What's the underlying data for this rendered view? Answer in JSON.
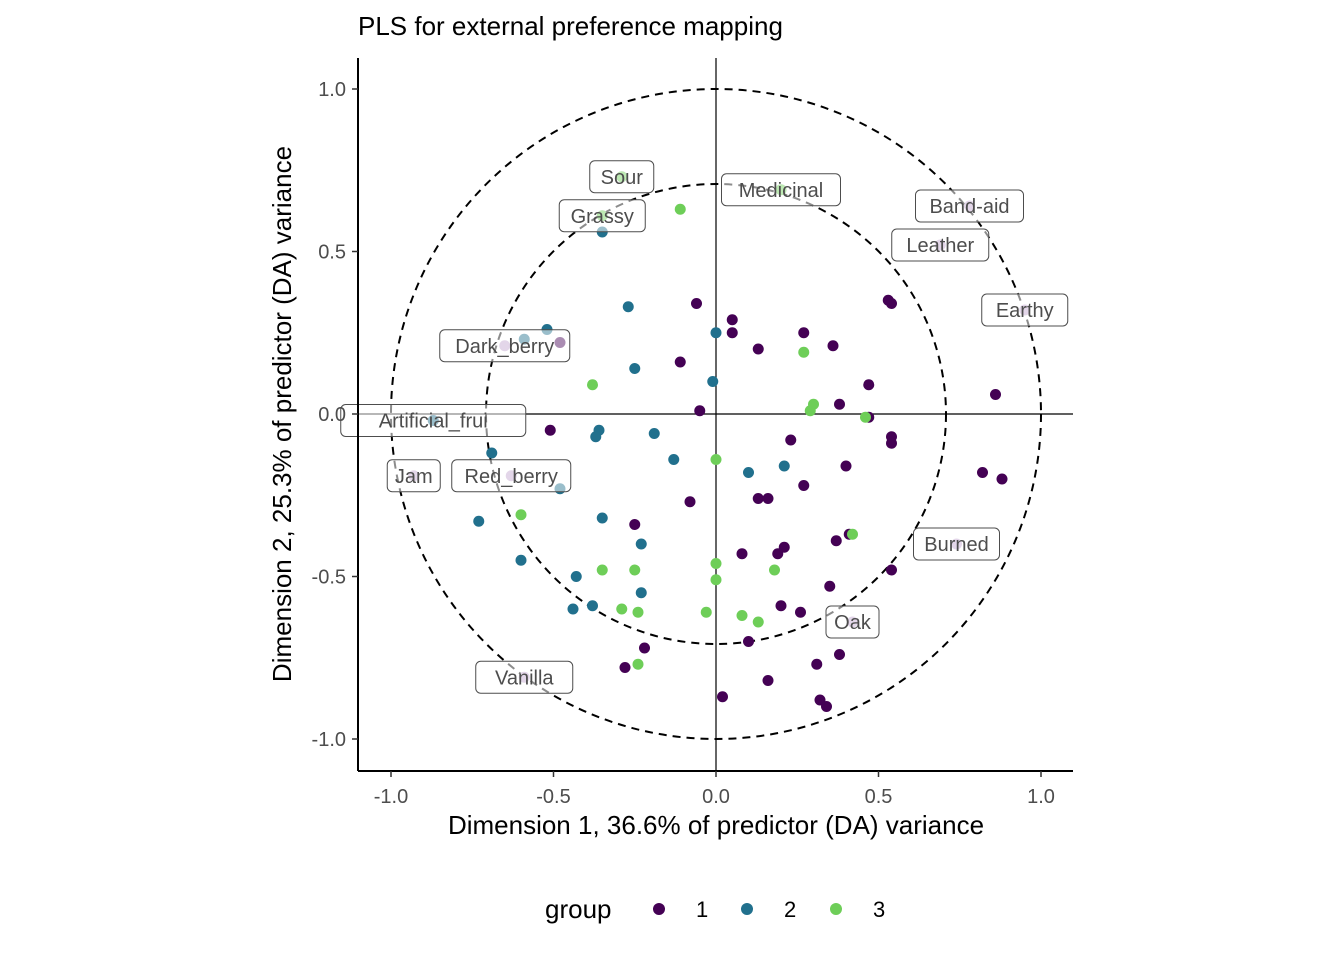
{
  "chart_data": {
    "type": "scatter",
    "title": "PLS for external preference mapping",
    "xlabel": "Dimension 1, 36.6% of predictor (DA) variance",
    "ylabel": "Dimension 2, 25.3% of predictor (DA) variance",
    "xlim": [
      -1.1,
      1.1
    ],
    "ylim": [
      -1.1,
      1.1
    ],
    "x_ticks": [
      "-1.0",
      "-0.5",
      "0.0",
      "0.5",
      "1.0"
    ],
    "y_ticks": [
      "-1.0",
      "-0.5",
      "0.0",
      "0.5",
      "1.0"
    ],
    "grid": false,
    "reference_lines": [
      0,
      0
    ],
    "circles": [
      1.0,
      0.707
    ],
    "legend": {
      "title": "group",
      "position": "bottom",
      "entries": [
        "1",
        "2",
        "3"
      ]
    },
    "colors": {
      "1": "#440154",
      "2": "#21708d",
      "3": "#6ece58",
      "descriptor_point": "#c2a5cf",
      "label_text": "#4d4d4d"
    },
    "series": [
      {
        "name": "1",
        "points": [
          [
            -0.06,
            0.34
          ],
          [
            0.05,
            0.29
          ],
          [
            0.05,
            0.25
          ],
          [
            0.27,
            0.25
          ],
          [
            0.36,
            0.21
          ],
          [
            0.53,
            0.35
          ],
          [
            0.54,
            0.34
          ],
          [
            0.13,
            0.2
          ],
          [
            -0.48,
            0.22
          ],
          [
            -0.11,
            0.16
          ],
          [
            -0.05,
            0.01
          ],
          [
            0.47,
            0.09
          ],
          [
            0.38,
            0.03
          ],
          [
            0.47,
            -0.01
          ],
          [
            0.86,
            0.06
          ],
          [
            0.23,
            -0.08
          ],
          [
            0.54,
            -0.07
          ],
          [
            0.54,
            -0.09
          ],
          [
            0.4,
            -0.16
          ],
          [
            0.82,
            -0.18
          ],
          [
            0.88,
            -0.2
          ],
          [
            -0.51,
            -0.05
          ],
          [
            0.27,
            -0.22
          ],
          [
            0.13,
            -0.26
          ],
          [
            0.16,
            -0.26
          ],
          [
            -0.08,
            -0.27
          ],
          [
            -0.25,
            -0.34
          ],
          [
            0.21,
            -0.41
          ],
          [
            0.19,
            -0.43
          ],
          [
            0.08,
            -0.43
          ],
          [
            0.37,
            -0.39
          ],
          [
            0.41,
            -0.37
          ],
          [
            0.54,
            -0.48
          ],
          [
            0.35,
            -0.53
          ],
          [
            0.2,
            -0.59
          ],
          [
            0.26,
            -0.61
          ],
          [
            0.1,
            -0.7
          ],
          [
            -0.22,
            -0.72
          ],
          [
            -0.28,
            -0.78
          ],
          [
            0.31,
            -0.77
          ],
          [
            0.38,
            -0.74
          ],
          [
            0.16,
            -0.82
          ],
          [
            0.02,
            -0.87
          ],
          [
            0.32,
            -0.88
          ],
          [
            0.34,
            -0.9
          ]
        ]
      },
      {
        "name": "2",
        "points": [
          [
            -0.35,
            0.56
          ],
          [
            -0.27,
            0.33
          ],
          [
            0.0,
            0.25
          ],
          [
            -0.52,
            0.26
          ],
          [
            -0.59,
            0.23
          ],
          [
            -0.25,
            0.14
          ],
          [
            -0.01,
            0.1
          ],
          [
            -0.87,
            -0.02
          ],
          [
            -0.36,
            -0.05
          ],
          [
            -0.37,
            -0.07
          ],
          [
            -0.19,
            -0.06
          ],
          [
            -0.13,
            -0.14
          ],
          [
            0.21,
            -0.16
          ],
          [
            0.1,
            -0.18
          ],
          [
            -0.69,
            -0.12
          ],
          [
            -0.48,
            -0.23
          ],
          [
            -0.73,
            -0.33
          ],
          [
            -0.35,
            -0.32
          ],
          [
            -0.6,
            -0.45
          ],
          [
            -0.23,
            -0.4
          ],
          [
            -0.43,
            -0.5
          ],
          [
            -0.23,
            -0.55
          ],
          [
            -0.38,
            -0.59
          ],
          [
            -0.44,
            -0.6
          ]
        ]
      },
      {
        "name": "3",
        "points": [
          [
            -0.29,
            0.73
          ],
          [
            0.2,
            0.69
          ],
          [
            -0.35,
            0.61
          ],
          [
            -0.11,
            0.63
          ],
          [
            0.27,
            0.19
          ],
          [
            -0.38,
            0.09
          ],
          [
            0.3,
            0.03
          ],
          [
            0.29,
            0.01
          ],
          [
            0.46,
            -0.01
          ],
          [
            0.0,
            -0.14
          ],
          [
            -0.6,
            -0.31
          ],
          [
            0.42,
            -0.37
          ],
          [
            0.0,
            -0.46
          ],
          [
            -0.35,
            -0.48
          ],
          [
            -0.25,
            -0.48
          ],
          [
            0.18,
            -0.48
          ],
          [
            0.0,
            -0.51
          ],
          [
            -0.29,
            -0.6
          ],
          [
            -0.24,
            -0.61
          ],
          [
            -0.03,
            -0.61
          ],
          [
            0.08,
            -0.62
          ],
          [
            0.13,
            -0.64
          ],
          [
            -0.24,
            -0.77
          ]
        ]
      }
    ],
    "descriptors": [
      {
        "label": "Sour",
        "x": -0.29,
        "y": 0.73
      },
      {
        "label": "Medicinal",
        "x": 0.2,
        "y": 0.69
      },
      {
        "label": "Band-aid",
        "x": 0.78,
        "y": 0.64
      },
      {
        "label": "Grassy",
        "x": -0.35,
        "y": 0.61
      },
      {
        "label": "Leather",
        "x": 0.69,
        "y": 0.52
      },
      {
        "label": "Earthy",
        "x": 0.95,
        "y": 0.32
      },
      {
        "label": "Dark_berry",
        "x": -0.65,
        "y": 0.21
      },
      {
        "label": "Artificial_frui",
        "x": -0.87,
        "y": -0.02
      },
      {
        "label": "Jam",
        "x": -0.93,
        "y": -0.19
      },
      {
        "label": "Red_berry",
        "x": -0.63,
        "y": -0.19
      },
      {
        "label": "Burned",
        "x": 0.74,
        "y": -0.4
      },
      {
        "label": "Oak",
        "x": 0.42,
        "y": -0.64
      },
      {
        "label": "Vanilla",
        "x": -0.59,
        "y": -0.81
      }
    ]
  }
}
